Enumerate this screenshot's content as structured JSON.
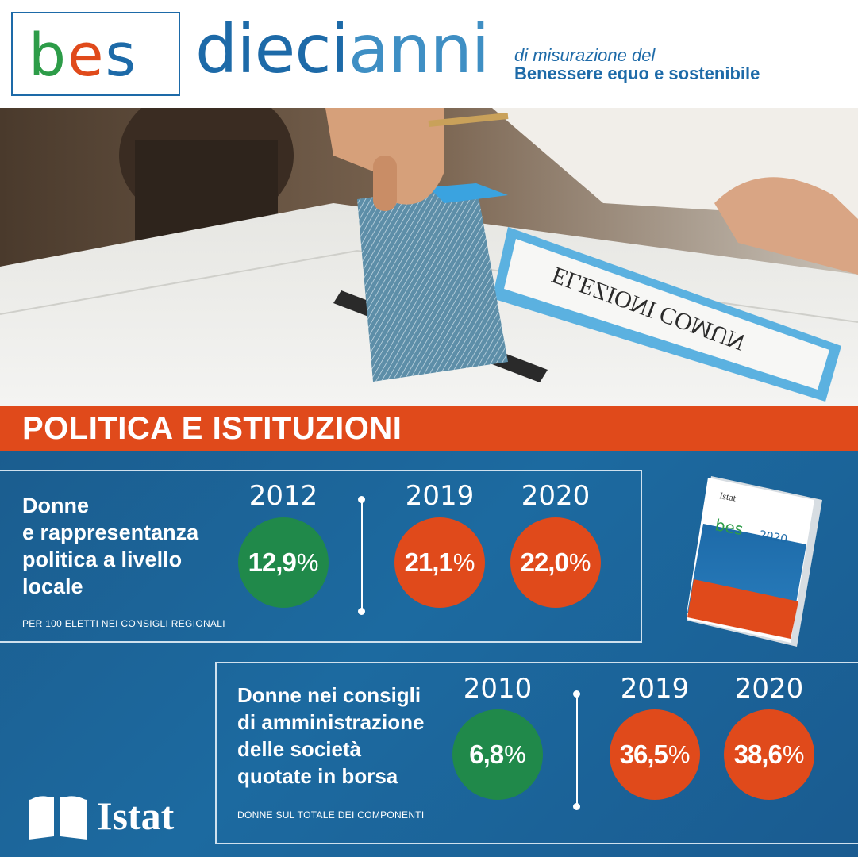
{
  "header": {
    "bes_logo": "bes",
    "dieci": "dieci",
    "anni": "anni",
    "subtitle_line1": "di misurazione del",
    "subtitle_line2": "Benessere equo e sostenibile"
  },
  "photo": {
    "ballot_box_label": "ELEZIONI COMUN"
  },
  "banner": {
    "title": "POLITICA E ISTITUZIONI"
  },
  "indicator1": {
    "title_lines": [
      "Donne",
      "e rappresentanza",
      "politica a livello",
      "locale"
    ],
    "note": "PER 100 ELETTI NEI CONSIGLI REGIONALI",
    "values": [
      {
        "year": "2012",
        "value": "12,9",
        "unit": "%",
        "color": "green"
      },
      {
        "year": "2019",
        "value": "21,1",
        "unit": "%",
        "color": "orange"
      },
      {
        "year": "2020",
        "value": "22,0",
        "unit": "%",
        "color": "orange"
      }
    ]
  },
  "indicator2": {
    "title_lines": [
      "Donne nei consigli",
      "di amministrazione",
      "delle società",
      "quotate in borsa"
    ],
    "note": "DONNE SUL TOTALE DEI COMPONENTI",
    "values": [
      {
        "year": "2010",
        "value": "6,8",
        "unit": "%",
        "color": "green"
      },
      {
        "year": "2019",
        "value": "36,5",
        "unit": "%",
        "color": "orange"
      },
      {
        "year": "2020",
        "value": "38,6",
        "unit": "%",
        "color": "orange"
      }
    ]
  },
  "footer": {
    "logo_text": "Istat"
  },
  "report_cover": {
    "publisher": "Istat",
    "logo": "bes",
    "year": "2020"
  },
  "colors": {
    "blue": "#1d6aa8",
    "orange": "#e04a1b",
    "green": "#20894a"
  }
}
